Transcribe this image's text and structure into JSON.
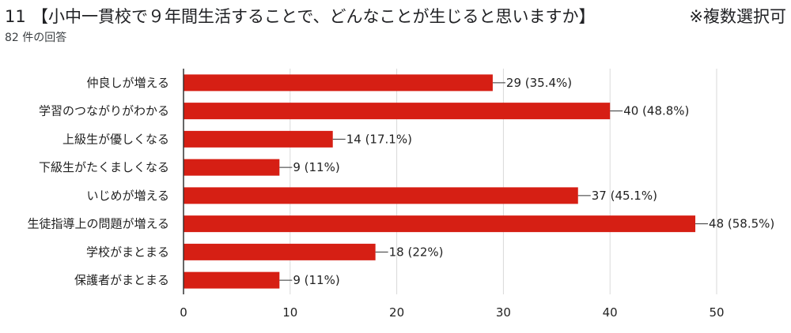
{
  "header": {
    "question_number": "11",
    "question_title": "【小中一貫校で９年間生活することで、どんなことが生じると思いますか】",
    "note": "※複数選択可",
    "response_count": "82 件の回答"
  },
  "colors": {
    "bar": "#d61f14",
    "grid": "#d9d9d9",
    "axis": "#333333",
    "text": "#222222"
  },
  "chart_data": {
    "type": "bar",
    "orientation": "horizontal",
    "categories": [
      "仲良しが増える",
      "学習のつながりがわかる",
      "上級生が優しくなる",
      "下級生がたくましくなる",
      "いじめが増える",
      "生徒指導上の問題が増える",
      "学校がまとまる",
      "保護者がまとまる"
    ],
    "values": [
      29,
      40,
      14,
      9,
      37,
      48,
      18,
      9
    ],
    "data_labels": [
      "29 (35.4%)",
      "40 (48.8%)",
      "14 (17.1%)",
      "9 (11%)",
      "37 (45.1%)",
      "48 (58.5%)",
      "18 (22%)",
      "9 (11%)"
    ],
    "xlim": [
      0,
      50
    ],
    "x_ticks": [
      0,
      10,
      20,
      30,
      40,
      50
    ],
    "grid": true,
    "legend": "none"
  }
}
